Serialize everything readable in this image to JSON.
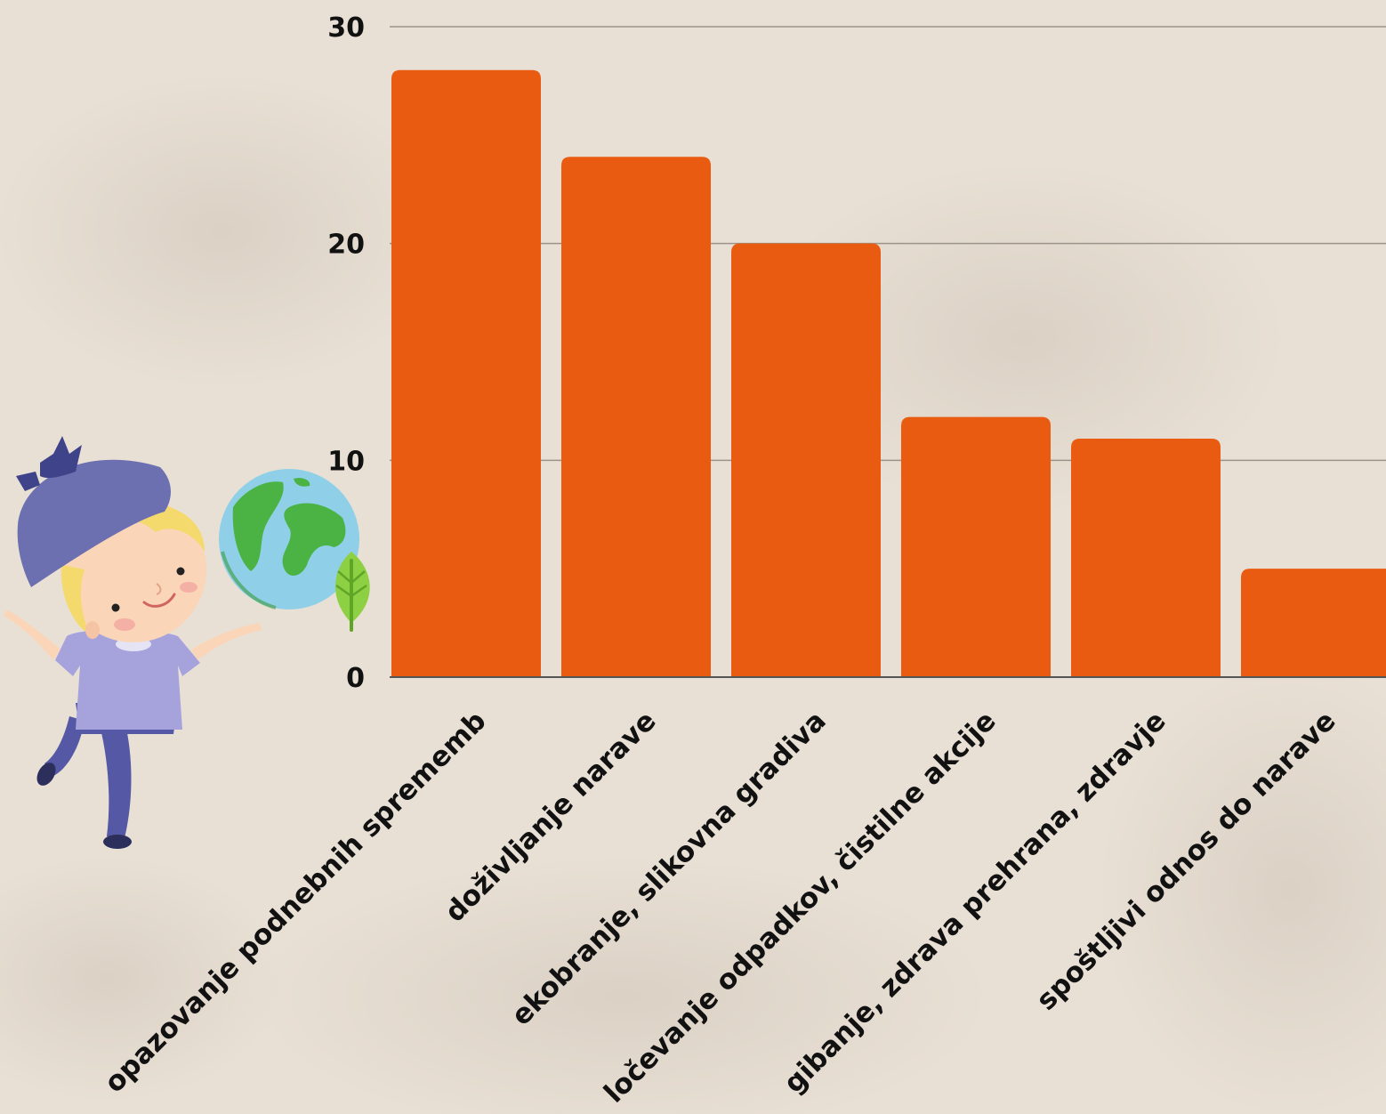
{
  "chart_data": {
    "type": "bar",
    "title": "",
    "xlabel": "",
    "ylabel": "",
    "ylim": [
      0,
      30
    ],
    "yticks": [
      0,
      10,
      20,
      30
    ],
    "grid": true,
    "categories": [
      "opazovanje podnebnih sprememb",
      "doživljanje narave",
      "ekobranje, slikovna gradiva",
      "ločevanje odpadkov, čistilne akcije",
      "gibanje, zdrava prehrana, zdravje",
      "spoštljivi odnos do narave"
    ],
    "values": [
      28,
      24,
      20,
      12,
      11,
      5
    ]
  },
  "colors": {
    "bar": "#e95b11",
    "grid": "#9b9288",
    "text": "#111111",
    "background": "#e9e0d5"
  },
  "illustration": {
    "icons": [
      "child-icon",
      "earth-globe-icon",
      "leaf-icon"
    ]
  }
}
